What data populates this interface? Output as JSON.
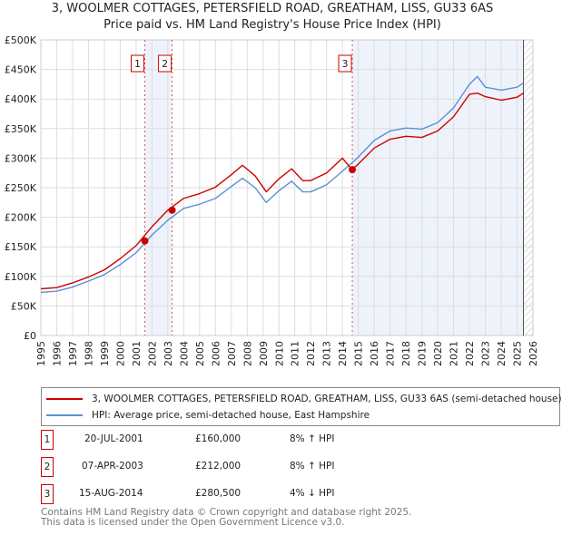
{
  "title": "3, WOOLMER COTTAGES, PETERSFIELD ROAD, GREATHAM, LISS, GU33 6AS",
  "subtitle": "Price paid vs. HM Land Registry's House Price Index (HPI)",
  "chart_data": {
    "type": "line",
    "xlim": [
      1995,
      2026
    ],
    "ylim": [
      0,
      500000
    ],
    "y_ticks": [
      "£0",
      "£50K",
      "£100K",
      "£150K",
      "£200K",
      "£250K",
      "£300K",
      "£350K",
      "£400K",
      "£450K",
      "£500K"
    ],
    "x_ticks": [
      "1995",
      "1996",
      "1997",
      "1998",
      "1999",
      "2000",
      "2001",
      "2002",
      "2003",
      "2004",
      "2005",
      "2006",
      "2007",
      "2008",
      "2009",
      "2010",
      "2011",
      "2012",
      "2013",
      "2014",
      "2015",
      "2016",
      "2017",
      "2018",
      "2019",
      "2020",
      "2021",
      "2022",
      "2023",
      "2024",
      "2025",
      "2026"
    ],
    "x": [
      1995,
      1996,
      1997,
      1998,
      1999,
      2000,
      2001,
      2002,
      2003,
      2004,
      2005,
      2006,
      2007,
      2007.7,
      2008.5,
      2009.2,
      2010,
      2010.8,
      2011.5,
      2012,
      2013,
      2014,
      2014.6,
      2015,
      2016,
      2017,
      2018,
      2019,
      2020,
      2021,
      2022,
      2022.5,
      2023,
      2024,
      2025,
      2025.4
    ],
    "series": [
      {
        "name": "3, WOOLMER COTTAGES, PETERSFIELD ROAD, GREATHAM, LISS, GU33 6AS (semi-detached house)",
        "color": "#cc0000",
        "values": [
          79000,
          81000,
          89000,
          99000,
          111000,
          130000,
          152000,
          184000,
          212000,
          232000,
          240000,
          251000,
          272000,
          288000,
          270000,
          243000,
          265000,
          282000,
          262000,
          262000,
          275000,
          300000,
          280500,
          290000,
          317000,
          332000,
          337000,
          335000,
          346000,
          370000,
          408000,
          410000,
          404000,
          398000,
          403000,
          410000
        ]
      },
      {
        "name": "HPI: Average price, semi-detached house, East Hampshire",
        "color": "#5b8fd4",
        "values": [
          73000,
          75000,
          82000,
          92000,
          103000,
          120000,
          140000,
          170000,
          195000,
          215000,
          222000,
          232000,
          252000,
          266000,
          250000,
          225000,
          245000,
          261000,
          243000,
          243000,
          255000,
          278000,
          292000,
          302000,
          330000,
          346000,
          351000,
          349000,
          360000,
          385000,
          425000,
          438000,
          420000,
          415000,
          420000,
          427000
        ]
      }
    ],
    "sales": [
      {
        "label": "1",
        "x": 2001.55,
        "value": 160000
      },
      {
        "label": "2",
        "x": 2003.27,
        "value": 212000
      },
      {
        "label": "3",
        "x": 2014.62,
        "value": 280500
      }
    ],
    "legend_position": "below"
  },
  "legend": [
    "3, WOOLMER COTTAGES, PETERSFIELD ROAD, GREATHAM, LISS, GU33 6AS (semi-detached house)",
    "HPI: Average price, semi-detached house, East Hampshire"
  ],
  "table": [
    {
      "num": "1",
      "date": "20-JUL-2001",
      "price": "£160,000",
      "hpi": "8% ↑ HPI"
    },
    {
      "num": "2",
      "date": "07-APR-2003",
      "price": "£212,000",
      "hpi": "8% ↑ HPI"
    },
    {
      "num": "3",
      "date": "15-AUG-2014",
      "price": "£280,500",
      "hpi": "4% ↓ HPI"
    }
  ],
  "footer": [
    "Contains HM Land Registry data © Crown copyright and database right 2025.",
    "This data is licensed under the Open Government Licence v3.0."
  ]
}
